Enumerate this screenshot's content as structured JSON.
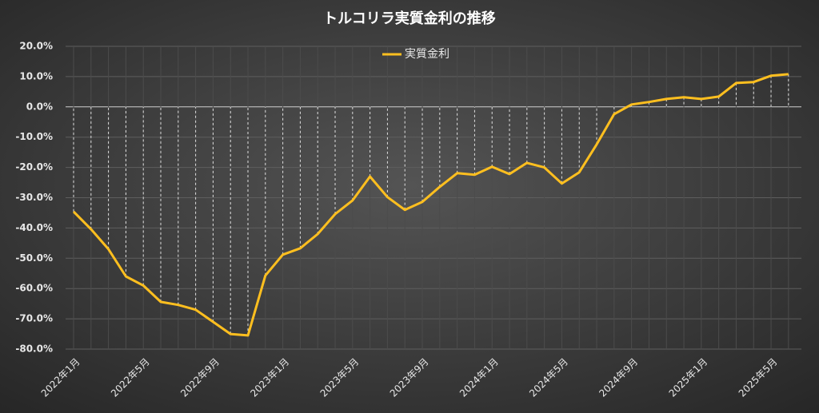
{
  "chart_data": {
    "type": "line",
    "title": "トルコリラ実質金利の推移",
    "categories": [
      "2022年1月",
      null,
      null,
      null,
      "2022年5月",
      null,
      null,
      null,
      "2022年9月",
      null,
      null,
      null,
      "2023年1月",
      null,
      null,
      null,
      "2023年5月",
      null,
      null,
      null,
      "2023年9月",
      null,
      null,
      null,
      "2024年1月",
      null,
      null,
      null,
      "2024年5月",
      null,
      null,
      null,
      "2024年9月",
      null,
      null,
      null,
      "2025年1月",
      null,
      null,
      null,
      "2025年5月",
      null
    ],
    "series": [
      {
        "name": "実質金利",
        "color": "#ffbf1f",
        "values": [
          -34.6,
          -40.4,
          -47,
          -56,
          -59,
          -64.4,
          -65.4,
          -67,
          -71,
          -75,
          -75.5,
          -55.7,
          -48.8,
          -46.7,
          -42,
          -35.4,
          -30.9,
          -23,
          -29.8,
          -34,
          -31.4,
          -26.4,
          -21.9,
          -22.4,
          -19.8,
          -22.2,
          -18.5,
          -20,
          -25.3,
          -21.6,
          -12.4,
          -2.4,
          0.8,
          1.6,
          2.6,
          3.2,
          2.6,
          3.4,
          7.9,
          8.2,
          10.3,
          10.8
        ]
      }
    ],
    "ylim": [
      -80,
      20
    ],
    "yticks": [
      {
        "value": -80,
        "label": "-80.0%"
      },
      {
        "value": -70,
        "label": "-70.0%"
      },
      {
        "value": -60,
        "label": "-60.0%"
      },
      {
        "value": -50,
        "label": "-50.0%"
      },
      {
        "value": -40,
        "label": "-40.0%"
      },
      {
        "value": -30,
        "label": "-30.0%"
      },
      {
        "value": -20,
        "label": "-20.0%"
      },
      {
        "value": -10,
        "label": "-10.0%"
      },
      {
        "value": 0,
        "label": "0.0%"
      },
      {
        "value": 10,
        "label": "10.0%"
      },
      {
        "value": 20,
        "label": "20.0%"
      }
    ],
    "grid": true,
    "drop_lines": true,
    "legend": "top"
  }
}
